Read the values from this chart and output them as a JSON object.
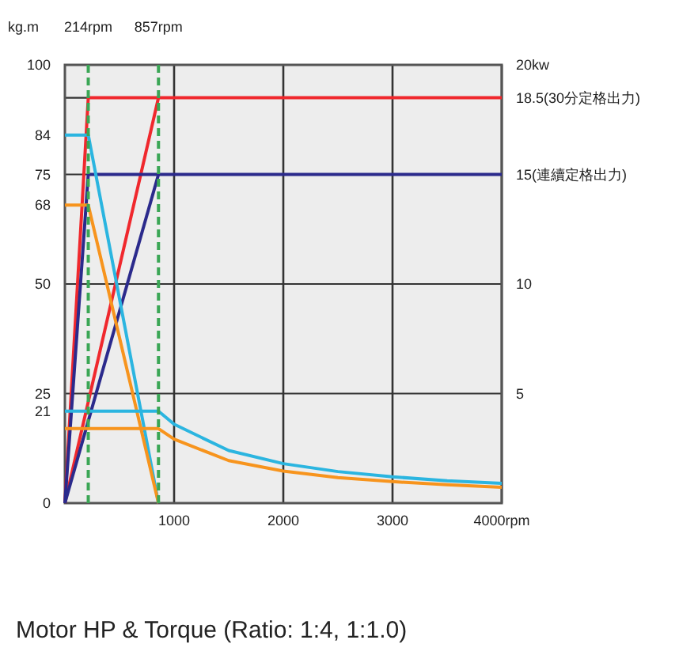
{
  "chart_data": {
    "type": "line",
    "title": "Motor HP & Torque  (Ratio: 1:4, 1:1.0)",
    "ylabel": "kg.m",
    "grid": true,
    "xlim": [
      0,
      4000
    ],
    "xticks": [
      1000,
      2000,
      3000,
      {
        "value": 4000,
        "label": "4000rpm"
      }
    ],
    "ylim": [
      0,
      100
    ],
    "yticks": [
      0,
      21,
      25,
      50,
      68,
      75,
      84,
      100
    ],
    "y2lim": [
      0,
      20
    ],
    "y2ticks": [
      5,
      10,
      {
        "value": 15,
        "label": "15(連續定格出力)"
      },
      {
        "value": 18.5,
        "label": "18.5(30分定格出力)"
      },
      {
        "value": 20,
        "label": "20kw"
      }
    ],
    "ref_lines": [
      {
        "axis": "x",
        "value": 214,
        "label": "214rpm",
        "color": "#3aa655",
        "line_style": "dashed"
      },
      {
        "axis": "x",
        "value": 857,
        "label": "857rpm",
        "color": "#3aa655",
        "line_style": "dashed"
      }
    ],
    "series": [
      {
        "color": "#f0282d",
        "axis": "y2",
        "x": [
          0,
          214,
          4000
        ],
        "values": [
          0,
          18.5,
          18.5
        ]
      },
      {
        "color": "#f0282d",
        "axis": "y2",
        "x": [
          0,
          857
        ],
        "values": [
          0,
          18.5
        ]
      },
      {
        "color": "#2b2a8c",
        "axis": "y2",
        "x": [
          0,
          214,
          4000
        ],
        "values": [
          0,
          15,
          15
        ]
      },
      {
        "color": "#2b2a8c",
        "axis": "y2",
        "x": [
          0,
          857
        ],
        "values": [
          0,
          15
        ]
      },
      {
        "color": "#2bb5e0",
        "x": [
          0,
          214,
          857
        ],
        "values": [
          84,
          84,
          0
        ]
      },
      {
        "color": "#f7941d",
        "x": [
          0,
          214,
          857
        ],
        "values": [
          68,
          68,
          0
        ]
      },
      {
        "color": "#2bb5e0",
        "x": [
          0,
          857,
          1000,
          1500,
          2000,
          2500,
          3000,
          3500,
          4000
        ],
        "values": [
          21,
          21,
          18,
          12,
          9,
          7.2,
          6,
          5.1,
          4.5
        ]
      },
      {
        "color": "#f7941d",
        "x": [
          0,
          857,
          1000,
          1500,
          2000,
          2500,
          3000,
          3500,
          4000
        ],
        "values": [
          17,
          17,
          14.6,
          9.7,
          7.3,
          5.8,
          4.9,
          4.2,
          3.6
        ]
      }
    ]
  }
}
